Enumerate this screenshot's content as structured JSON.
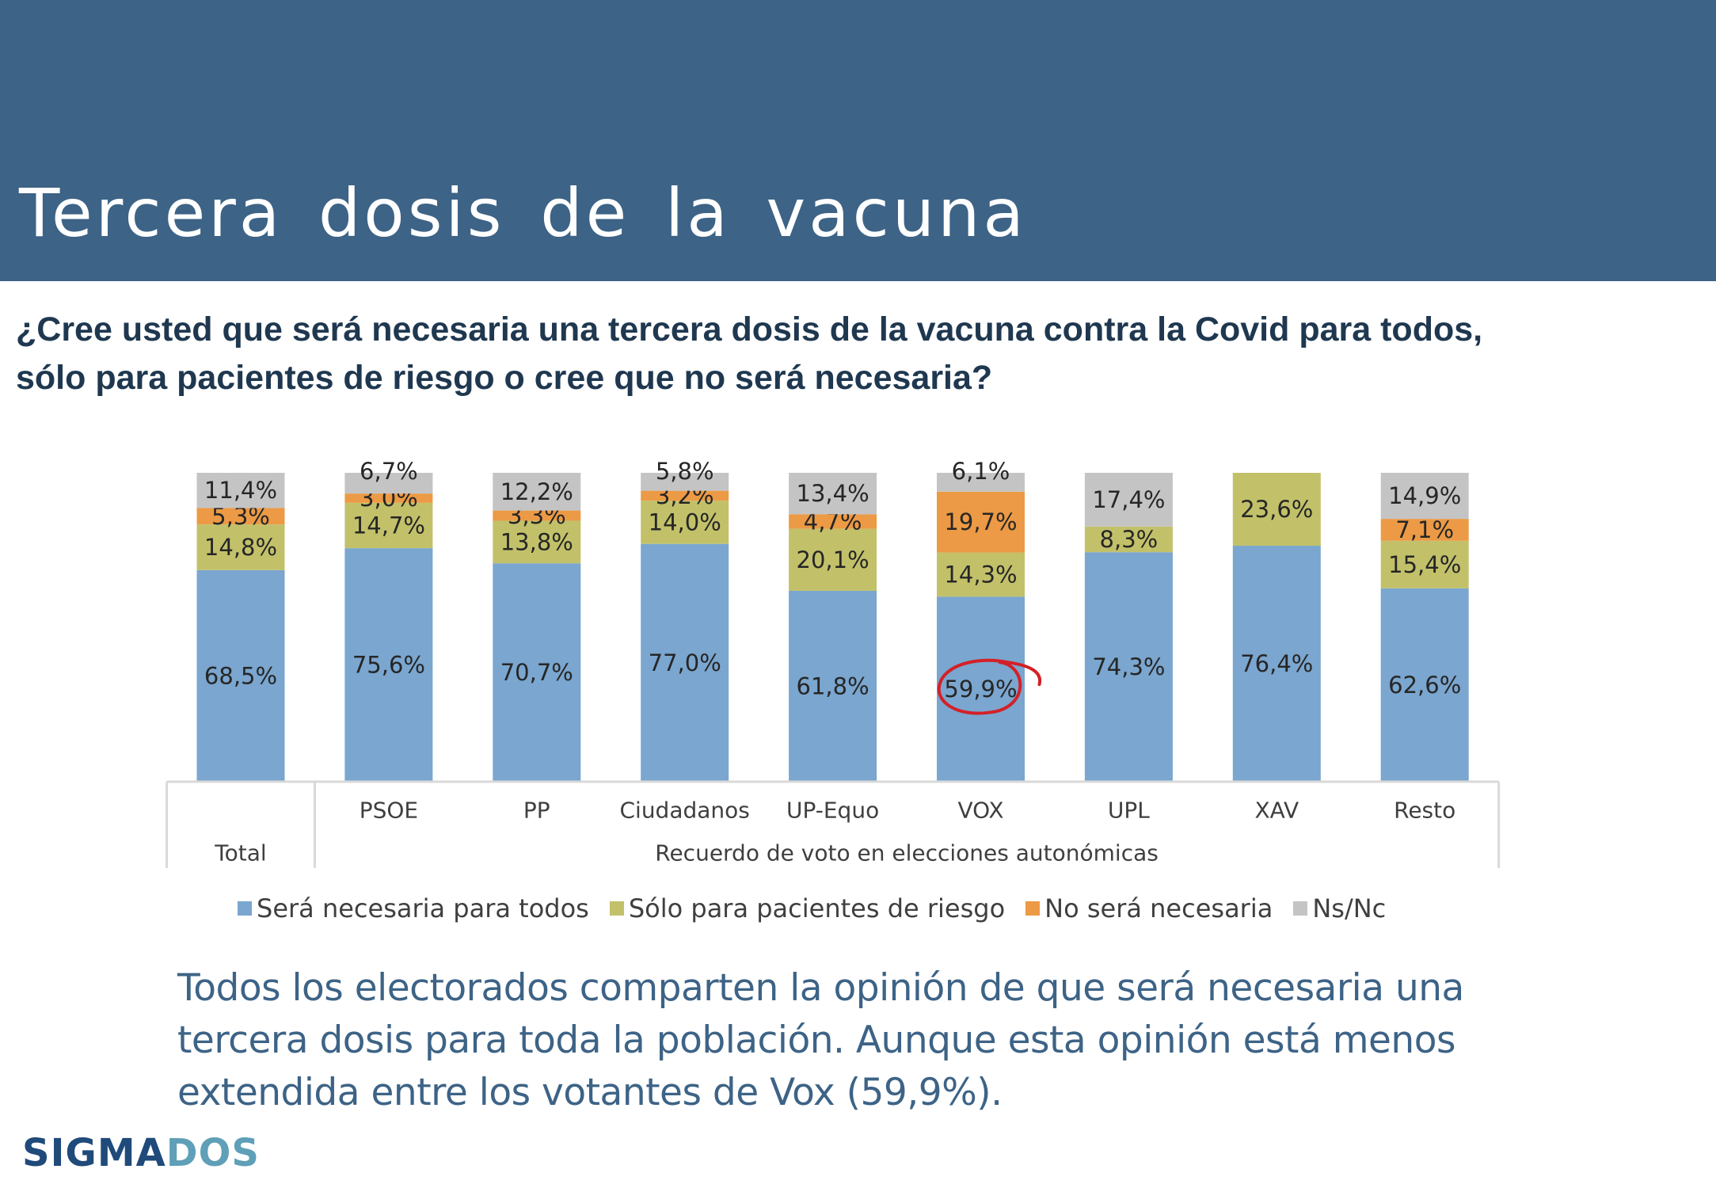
{
  "header": {
    "title": "Tercera dosis de la vacuna"
  },
  "question": "¿Cree usted que será necesaria una tercera dosis de la vacuna contra la Covid para todos, sólo para pacientes de riesgo o cree que no será necesaria?",
  "conclusion": "Todos los electorados comparten la opinión de que será necesaria una tercera dosis para toda la población. Aunque esta opinión está menos extendida entre los votantes de Vox (59,9%).",
  "logo": {
    "part1": "SIGMA",
    "part2": "DOS"
  },
  "chart_data": {
    "type": "bar",
    "stacked": true,
    "title": "",
    "categories": [
      "Total",
      "PSOE",
      "PP",
      "Ciudadanos",
      "UP-Equo",
      "VOX",
      "UPL",
      "XAV",
      "Resto"
    ],
    "group_label": "Recuerdo de voto en elecciones autonómicas",
    "ylim": [
      0,
      100
    ],
    "series": [
      {
        "name": "Será necesaria para todos",
        "color": "#7aa6cf",
        "values": [
          68.5,
          75.6,
          70.7,
          77.0,
          61.8,
          59.9,
          74.3,
          76.4,
          62.6
        ],
        "labels": [
          "68,5%",
          "75,6%",
          "70,7%",
          "77,0%",
          "61,8%",
          "59,9%",
          "74,3%",
          "76,4%",
          "62,6%"
        ]
      },
      {
        "name": "Sólo para pacientes de riesgo",
        "color": "#c2c16a",
        "values": [
          14.8,
          14.7,
          13.8,
          14.0,
          20.1,
          14.3,
          8.3,
          23.6,
          15.4
        ],
        "labels": [
          "14,8%",
          "14,7%",
          "13,8%",
          "14,0%",
          "20,1%",
          "14,3%",
          "8,3%",
          "23,6%",
          "15,4%"
        ]
      },
      {
        "name": "No será necesaria",
        "color": "#ec9a45",
        "values": [
          5.3,
          3.0,
          3.3,
          3.2,
          4.7,
          19.7,
          0,
          0,
          7.1
        ],
        "labels": [
          "5,3%",
          "3,0%",
          "3,3%",
          "3,2%",
          "4,7%",
          "19,7%",
          "",
          "",
          "7,1%"
        ]
      },
      {
        "name": "Ns/Nc",
        "color": "#c4c4c4",
        "values": [
          11.4,
          6.7,
          12.2,
          5.8,
          13.4,
          6.1,
          17.4,
          0,
          14.9
        ],
        "labels": [
          "11,4%",
          "6,7%",
          "12,2%",
          "5,8%",
          "13,4%",
          "6,1%",
          "17,4%",
          "",
          "14,9%"
        ]
      }
    ],
    "annotations": [
      {
        "type": "circle",
        "category": "VOX",
        "series": "Será necesaria para todos",
        "color": "#d42027"
      }
    ]
  }
}
